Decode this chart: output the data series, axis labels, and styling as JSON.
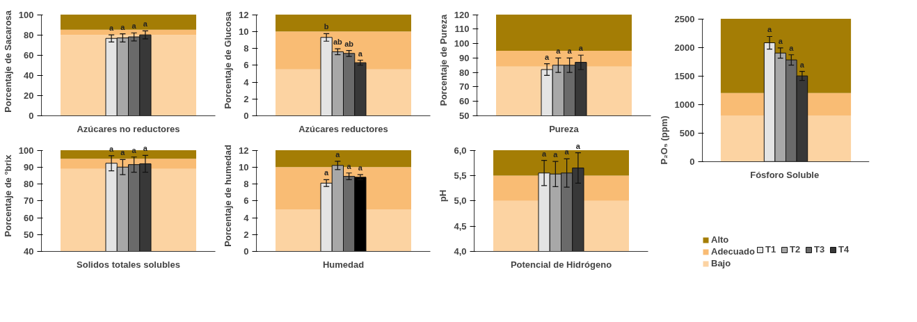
{
  "chart_data": [
    {
      "type": "bar",
      "xlabel": "Azúcares no reductores",
      "ylabel": "Porcentaje de  Sacarosa",
      "categories": [
        null
      ],
      "ylim": [
        0,
        100
      ],
      "yticks": [
        0,
        20,
        40,
        60,
        80,
        100
      ],
      "bands": [
        {
          "axis": "y",
          "from": 0,
          "to": 80,
          "color": "#fcd3a2"
        },
        {
          "axis": "y",
          "from": 80,
          "to": 85,
          "color": "#f9bc74"
        },
        {
          "axis": "y",
          "from": 85,
          "to": 100,
          "color": "#a47d05"
        }
      ],
      "series": [
        {
          "color": "#e4e4e4",
          "values": [
            76.5
          ],
          "errors": [
            3.5
          ],
          "value_labels": [
            "a"
          ]
        },
        {
          "color": "#a8a8a8",
          "values": [
            77
          ],
          "errors": [
            4
          ],
          "value_labels": [
            "a"
          ]
        },
        {
          "color": "#6a6a6a",
          "values": [
            78
          ],
          "errors": [
            4
          ],
          "value_labels": [
            "a"
          ]
        },
        {
          "color": "#383838",
          "values": [
            80
          ],
          "errors": [
            4
          ],
          "value_labels": [
            "a"
          ]
        }
      ]
    },
    {
      "type": "bar",
      "xlabel": "Azúcares reductores",
      "ylabel": "Porcentaje de Glucosa",
      "categories": [
        null
      ],
      "ylim": [
        0,
        12
      ],
      "yticks": [
        0,
        2,
        4,
        6,
        8,
        10,
        12
      ],
      "bands": [
        {
          "axis": "y",
          "from": 0,
          "to": 5.5,
          "color": "#fcd3a2"
        },
        {
          "axis": "y",
          "from": 5.5,
          "to": 10,
          "color": "#f9bc74"
        },
        {
          "axis": "y",
          "from": 10,
          "to": 12,
          "color": "#a47d05"
        }
      ],
      "series": [
        {
          "color": "#e4e4e4",
          "values": [
            9.3
          ],
          "errors": [
            0.45
          ],
          "value_labels": [
            "b"
          ]
        },
        {
          "color": "#a8a8a8",
          "values": [
            7.6
          ],
          "errors": [
            0.35
          ],
          "value_labels": [
            "ab"
          ]
        },
        {
          "color": "#6a6a6a",
          "values": [
            7.4
          ],
          "errors": [
            0.35
          ],
          "value_labels": [
            "ab"
          ]
        },
        {
          "color": "#383838",
          "values": [
            6.3
          ],
          "errors": [
            0.3
          ],
          "value_labels": [
            "a"
          ]
        }
      ]
    },
    {
      "type": "bar",
      "xlabel": "Pureza",
      "ylabel": "Porcentaje de Pureza",
      "categories": [
        null
      ],
      "ylim": [
        50,
        120
      ],
      "yticks": [
        50,
        60,
        70,
        80,
        90,
        100,
        110,
        120
      ],
      "bands": [
        {
          "axis": "y",
          "from": 50,
          "to": 84,
          "color": "#fcd3a2"
        },
        {
          "axis": "y",
          "from": 84,
          "to": 95,
          "color": "#f9bc74"
        },
        {
          "axis": "y",
          "from": 95,
          "to": 120,
          "color": "#a47d05"
        }
      ],
      "series": [
        {
          "color": "#e4e4e4",
          "values": [
            82
          ],
          "errors": [
            4
          ],
          "value_labels": [
            "a"
          ]
        },
        {
          "color": "#a8a8a8",
          "values": [
            85
          ],
          "errors": [
            5
          ],
          "value_labels": [
            "a"
          ]
        },
        {
          "color": "#6a6a6a",
          "values": [
            85
          ],
          "errors": [
            5
          ],
          "value_labels": [
            "a"
          ]
        },
        {
          "color": "#383838",
          "values": [
            87
          ],
          "errors": [
            5
          ],
          "value_labels": [
            "a"
          ]
        }
      ]
    },
    {
      "type": "bar",
      "xlabel": "Solidos totales solubles",
      "ylabel": "Porcentaje de °brix",
      "categories": [
        null
      ],
      "ylim": [
        40,
        100
      ],
      "yticks": [
        40,
        50,
        60,
        70,
        80,
        90,
        100
      ],
      "bands": [
        {
          "axis": "y",
          "from": 40,
          "to": 89,
          "color": "#fcd3a2"
        },
        {
          "axis": "y",
          "from": 89,
          "to": 95,
          "color": "#f9bc74"
        },
        {
          "axis": "y",
          "from": 95,
          "to": 100,
          "color": "#a47d05"
        }
      ],
      "series": [
        {
          "color": "#e4e4e4",
          "values": [
            92.3
          ],
          "errors": [
            4.5
          ],
          "value_labels": [
            "a"
          ]
        },
        {
          "color": "#a8a8a8",
          "values": [
            90
          ],
          "errors": [
            4.5
          ],
          "value_labels": [
            "a"
          ]
        },
        {
          "color": "#6a6a6a",
          "values": [
            91.5
          ],
          "errors": [
            4.5
          ],
          "value_labels": [
            "a"
          ]
        },
        {
          "color": "#383838",
          "values": [
            92
          ],
          "errors": [
            5
          ],
          "value_labels": [
            "a"
          ]
        }
      ]
    },
    {
      "type": "bar",
      "xlabel": "Humedad",
      "ylabel": "Porcentaje de humedad",
      "categories": [
        null
      ],
      "ylim": [
        0,
        12
      ],
      "yticks": [
        0,
        2,
        4,
        6,
        8,
        10,
        12
      ],
      "bands": [
        {
          "axis": "y",
          "from": 0,
          "to": 5,
          "color": "#fcd3a2"
        },
        {
          "axis": "y",
          "from": 5,
          "to": 10,
          "color": "#f9bc74"
        },
        {
          "axis": "y",
          "from": 10,
          "to": 12,
          "color": "#a47d05"
        }
      ],
      "series": [
        {
          "color": "#e4e4e4",
          "values": [
            8.1
          ],
          "errors": [
            0.4
          ],
          "value_labels": [
            "a"
          ]
        },
        {
          "color": "#a8a8a8",
          "values": [
            10.2
          ],
          "errors": [
            0.5
          ],
          "value_labels": [
            "a"
          ]
        },
        {
          "color": "#6a6a6a",
          "values": [
            8.9
          ],
          "errors": [
            0.4
          ],
          "value_labels": [
            "a"
          ]
        },
        {
          "color": "#000000",
          "values": [
            8.8
          ],
          "errors": [
            0.3
          ],
          "value_labels": [
            "a"
          ]
        }
      ]
    },
    {
      "type": "bar",
      "xlabel": "Potencial de Hidrógeno",
      "ylabel": "pH",
      "categories": [
        null
      ],
      "ylim": [
        4,
        6
      ],
      "yticks": [
        {
          "value": 4,
          "label": "4,0"
        },
        {
          "value": 4.5,
          "label": "4,5"
        },
        {
          "value": 5,
          "label": "5,0"
        },
        {
          "value": 5.5,
          "label": "5,5"
        },
        {
          "value": 6,
          "label": "6,0"
        }
      ],
      "bands": [
        {
          "axis": "y",
          "from": 4,
          "to": 5,
          "color": "#fcd3a2"
        },
        {
          "axis": "y",
          "from": 5,
          "to": 5.5,
          "color": "#f9bc74"
        },
        {
          "axis": "y",
          "from": 5.5,
          "to": 6,
          "color": "#a47d05"
        }
      ],
      "series": [
        {
          "color": "#e4e4e4",
          "values": [
            5.55
          ],
          "errors": [
            0.25
          ],
          "value_labels": [
            "a"
          ]
        },
        {
          "color": "#a8a8a8",
          "values": [
            5.53
          ],
          "errors": [
            0.25
          ],
          "value_labels": [
            "a"
          ]
        },
        {
          "color": "#6a6a6a",
          "values": [
            5.55
          ],
          "errors": [
            0.28
          ],
          "value_labels": [
            "a"
          ]
        },
        {
          "color": "#383838",
          "values": [
            5.65
          ],
          "errors": [
            0.3
          ],
          "value_labels": [
            "a"
          ]
        }
      ]
    },
    {
      "type": "bar",
      "xlabel": "Fósforo  Soluble",
      "ylabel": "P₂O₅ (ppm)",
      "categories": [
        null
      ],
      "ylim": [
        0,
        2500
      ],
      "yticks": [
        0,
        500,
        1000,
        1500,
        2000,
        2500
      ],
      "legend": "bottom",
      "bands": [
        {
          "axis": "y",
          "from": 0,
          "to": 800,
          "color": "#fcd3a2",
          "label": "Bajo"
        },
        {
          "axis": "y",
          "from": 800,
          "to": 1200,
          "color": "#f9bc74",
          "label": "Adecuado"
        },
        {
          "axis": "y",
          "from": 1200,
          "to": 2500,
          "color": "#a47d05",
          "label": "Alto"
        }
      ],
      "series": [
        {
          "name": "T1",
          "color": "#e4e4e4",
          "values": [
            2080
          ],
          "errors": [
            110
          ],
          "value_labels": [
            "a"
          ]
        },
        {
          "name": "T2",
          "color": "#a8a8a8",
          "values": [
            1900
          ],
          "errors": [
            90
          ],
          "value_labels": [
            "a"
          ]
        },
        {
          "name": "T3",
          "color": "#6a6a6a",
          "values": [
            1780
          ],
          "errors": [
            90
          ],
          "value_labels": [
            "a"
          ]
        },
        {
          "name": "T4",
          "color": "#383838",
          "values": [
            1500
          ],
          "errors": [
            80
          ],
          "value_labels": [
            "a"
          ]
        }
      ]
    }
  ]
}
